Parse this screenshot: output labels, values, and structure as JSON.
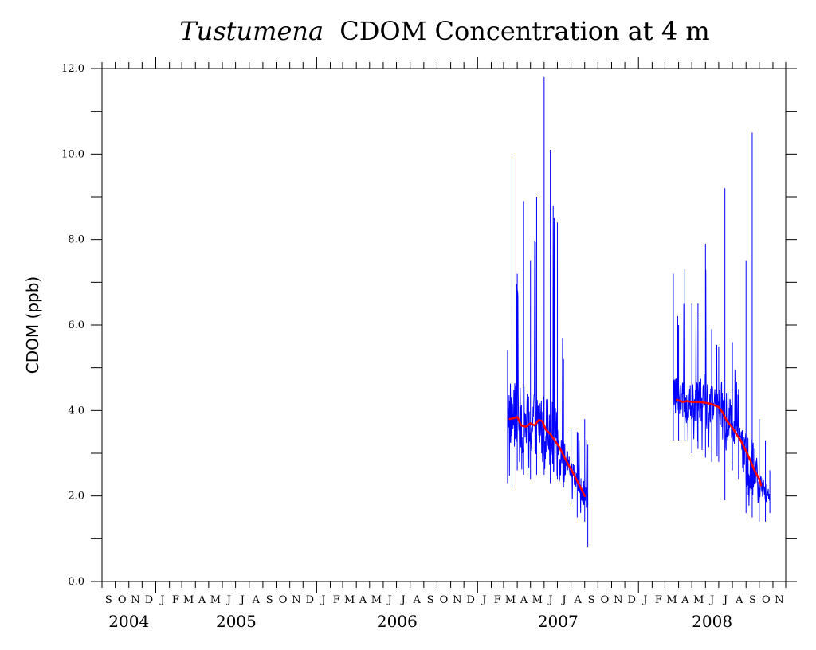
{
  "chart_data": {
    "type": "line",
    "title": "CDOM Concentration at 4 m",
    "title_italic_prefix": "Tustumena",
    "ylabel": "CDOM (ppb)",
    "ylim": [
      0,
      12
    ],
    "ytick_labels": [
      "0.0",
      "2.0",
      "4.0",
      "6.0",
      "8.0",
      "10.0",
      "12.0"
    ],
    "x_range": [
      "2004-09-01",
      "2008-11-30"
    ],
    "month_letters": [
      "S",
      "O",
      "N",
      "D",
      "J",
      "F",
      "M",
      "A",
      "M",
      "J",
      "J",
      "A",
      "S",
      "O",
      "N",
      "D",
      "J",
      "F",
      "M",
      "A",
      "M",
      "J",
      "J",
      "A",
      "S",
      "O",
      "N",
      "D",
      "J",
      "F",
      "M",
      "A",
      "M",
      "J",
      "J",
      "A",
      "S",
      "O",
      "N",
      "D",
      "J",
      "F",
      "M",
      "A",
      "M",
      "J",
      "J",
      "A",
      "S",
      "O",
      "N"
    ],
    "year_labels": [
      "2004",
      "2005",
      "2006",
      "2007",
      "2008"
    ],
    "grid": false,
    "series": [
      {
        "color": "#0000ff",
        "segments": [
          {
            "x": [
              "2007-03-10",
              "2007-03-20",
              "2007-04-01",
              "2007-04-15",
              "2007-05-01",
              "2007-05-15",
              "2007-06-01",
              "2007-06-15",
              "2007-07-01",
              "2007-07-15",
              "2007-08-01",
              "2007-08-15",
              "2007-09-01",
              "2007-09-08"
            ],
            "y": [
              4.0,
              3.9,
              3.8,
              3.8,
              3.6,
              3.7,
              3.7,
              3.5,
              3.2,
              2.9,
              2.6,
              2.3,
              2.0,
              1.8
            ],
            "low": [
              2.3,
              2.2,
              2.6,
              2.5,
              2.4,
              2.5,
              2.5,
              2.3,
              2.4,
              2.2,
              1.8,
              1.5,
              1.4,
              0.8
            ],
            "high": [
              5.4,
              9.9,
              7.2,
              8.9,
              7.5,
              9.0,
              11.8,
              10.1,
              8.4,
              5.2,
              3.6,
              3.5,
              3.8,
              3.2
            ]
          },
          {
            "x": [
              "2008-03-20",
              "2008-04-01",
              "2008-04-15",
              "2008-05-01",
              "2008-05-15",
              "2008-06-01",
              "2008-06-15",
              "2008-07-01",
              "2008-07-15",
              "2008-08-01",
              "2008-08-15",
              "2008-09-01",
              "2008-09-15",
              "2008-10-01",
              "2008-10-15",
              "2008-10-25"
            ],
            "y": [
              4.4,
              4.3,
              4.2,
              4.2,
              4.2,
              4.2,
              4.2,
              4.1,
              3.9,
              3.6,
              3.3,
              2.9,
              2.5,
              2.2,
              2.1,
              2.0
            ],
            "low": [
              3.3,
              3.3,
              3.3,
              3.0,
              3.1,
              2.9,
              2.8,
              2.8,
              1.9,
              2.6,
              2.4,
              1.6,
              1.5,
              1.4,
              1.4,
              1.6
            ],
            "high": [
              7.2,
              6.0,
              7.3,
              6.5,
              6.5,
              7.9,
              5.9,
              5.5,
              9.2,
              5.6,
              4.5,
              7.5,
              10.5,
              3.8,
              3.3,
              2.6
            ]
          }
        ]
      },
      {
        "color": "#ff0000",
        "segments": [
          {
            "x": [
              "2007-03-15",
              "2007-03-25",
              "2007-04-01",
              "2007-04-10",
              "2007-04-20",
              "2007-05-01",
              "2007-05-10",
              "2007-05-20",
              "2007-05-28",
              "2007-06-05",
              "2007-06-15",
              "2007-06-25",
              "2007-07-05",
              "2007-07-15",
              "2007-07-25",
              "2007-08-05",
              "2007-08-15",
              "2007-08-25",
              "2007-09-01"
            ],
            "y": [
              3.8,
              3.82,
              3.85,
              3.65,
              3.62,
              3.7,
              3.65,
              3.78,
              3.75,
              3.55,
              3.45,
              3.3,
              3.15,
              2.95,
              2.75,
              2.55,
              2.35,
              2.15,
              2.0
            ]
          },
          {
            "x": [
              "2008-03-28",
              "2008-04-10",
              "2008-04-20",
              "2008-05-01",
              "2008-05-15",
              "2008-06-01",
              "2008-06-15",
              "2008-07-01",
              "2008-07-10",
              "2008-07-20",
              "2008-08-01",
              "2008-08-10",
              "2008-08-20",
              "2008-09-01",
              "2008-09-10",
              "2008-09-20",
              "2008-10-01",
              "2008-10-05"
            ],
            "y": [
              4.25,
              4.2,
              4.22,
              4.2,
              4.2,
              4.18,
              4.15,
              4.08,
              3.95,
              3.75,
              3.6,
              3.45,
              3.3,
              3.05,
              2.85,
              2.6,
              2.4,
              2.25
            ]
          }
        ]
      }
    ]
  }
}
